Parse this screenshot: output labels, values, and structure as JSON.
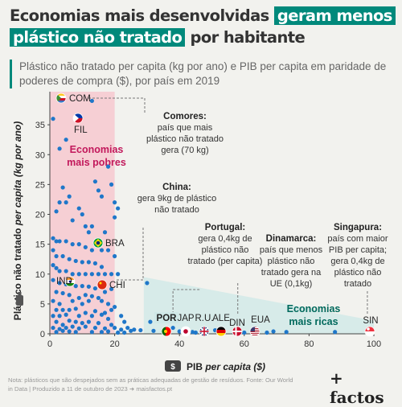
{
  "title": {
    "part1": "Economias mais desenvolvidas",
    "highlight1": "geram menos",
    "highlight2": "plástico não tratado",
    "part2": "por habitante"
  },
  "subtitle": "Plástico não tratado per capita (kg por ano) e PIB per capita em paridade de poderes de compra ($), por país em 2019",
  "footer": "Nota: plásticos que são despejados sem as práticas adequadas de gestão de resíduos. Fonte: Our World in Data | Produzido a 11 de outubro de 2023 ➜ maisfactos.pt",
  "logo": "+ factos",
  "colors": {
    "accent": "#00897b",
    "dot": "#1f77c9",
    "poorZone": "#f7c9cf",
    "richZone": "#cfe8e7",
    "poorText": "#c2185b",
    "richText": "#00695c"
  },
  "chart_data": {
    "type": "scatter",
    "xlabel_prefix": "PIB",
    "xlabel_italic": "per capita ($)",
    "ylabel_prefix": "Plástico não tratado",
    "ylabel_italic": "per capita (kg por ano)",
    "xlim": [
      0,
      100
    ],
    "ylim": [
      0,
      40
    ],
    "x_ticks": [
      "0",
      "20",
      "40",
      "60",
      "80",
      "100"
    ],
    "y_ticks": [
      "0",
      "5",
      "10",
      "15",
      "20",
      "25",
      "30",
      "35"
    ],
    "zones": [
      {
        "label_line1": "Economias",
        "label_line2": "mais pobres",
        "x_range": [
          0,
          20
        ]
      },
      {
        "label_line1": "Economias",
        "label_line2": "mais ricas"
      }
    ],
    "labeled_points": [
      {
        "code": "COM",
        "x": 2,
        "y": 40,
        "icon": "comoros-flag-icon"
      },
      {
        "code": "FIL",
        "x": 4,
        "y": 35,
        "icon": "philippines-flag-icon"
      },
      {
        "code": "BRA",
        "x": 15,
        "y": 15.5,
        "icon": "brazil-flag-icon"
      },
      {
        "code": "IND",
        "x": 6,
        "y": 9,
        "icon": "india-flag-icon"
      },
      {
        "code": "CHI",
        "x": 16,
        "y": 8.8,
        "icon": "china-flag-icon"
      },
      {
        "code": "POR",
        "x": 36.5,
        "y": 0.4,
        "icon": "portugal-flag-icon"
      },
      {
        "code": "JAP",
        "x": 42,
        "y": 0.2,
        "icon": "japan-flag-icon"
      },
      {
        "code": "R.U.",
        "x": 48,
        "y": 0.2,
        "icon": "uk-flag-icon"
      },
      {
        "code": "ALE",
        "x": 55,
        "y": 0.2,
        "icon": "germany-flag-icon"
      },
      {
        "code": "DIN",
        "x": 58,
        "y": 0.1,
        "icon": "denmark-flag-icon"
      },
      {
        "code": "EUA",
        "x": 62,
        "y": 0.2,
        "icon": "usa-flag-icon"
      },
      {
        "code": "SIN",
        "x": 98,
        "y": 0.4,
        "icon": "singapore-flag-icon"
      }
    ],
    "points": [
      [
        1,
        36
      ],
      [
        3,
        31
      ],
      [
        5,
        32.5
      ],
      [
        8,
        36
      ],
      [
        13,
        39
      ],
      [
        18,
        28
      ],
      [
        19,
        25
      ],
      [
        20,
        22
      ],
      [
        21,
        21
      ],
      [
        20,
        19.5
      ],
      [
        2,
        20.5
      ],
      [
        4,
        24.5
      ],
      [
        6,
        23
      ],
      [
        14,
        25.5
      ],
      [
        15,
        24
      ],
      [
        16,
        23
      ],
      [
        3,
        22
      ],
      [
        5,
        22
      ],
      [
        9,
        21
      ],
      [
        10,
        20
      ],
      [
        7,
        19
      ],
      [
        11,
        18
      ],
      [
        13,
        18
      ],
      [
        12,
        17
      ],
      [
        17,
        17
      ],
      [
        1,
        16
      ],
      [
        2,
        15.5
      ],
      [
        3,
        15.5
      ],
      [
        5,
        15.5
      ],
      [
        7,
        15
      ],
      [
        9,
        15
      ],
      [
        11,
        14.5
      ],
      [
        13,
        14
      ],
      [
        14,
        15
      ],
      [
        16,
        14
      ],
      [
        18,
        14
      ],
      [
        20,
        13
      ],
      [
        1,
        14
      ],
      [
        2,
        13
      ],
      [
        4,
        13
      ],
      [
        6,
        12.5
      ],
      [
        8,
        12.2
      ],
      [
        10,
        12
      ],
      [
        12,
        12
      ],
      [
        14,
        11.8
      ],
      [
        16,
        11.2
      ],
      [
        1,
        11.5
      ],
      [
        2,
        11
      ],
      [
        3,
        10.5
      ],
      [
        5,
        10.5
      ],
      [
        7,
        10
      ],
      [
        9,
        10
      ],
      [
        11,
        10
      ],
      [
        13,
        10
      ],
      [
        15,
        10
      ],
      [
        17,
        10
      ],
      [
        19,
        10
      ],
      [
        21,
        10
      ],
      [
        1,
        9
      ],
      [
        3,
        8.5
      ],
      [
        5,
        8.3
      ],
      [
        8,
        8
      ],
      [
        10,
        8
      ],
      [
        12,
        7.9
      ],
      [
        14,
        7.6
      ],
      [
        17,
        7
      ],
      [
        19,
        7.5
      ],
      [
        2,
        7
      ],
      [
        4,
        6.8
      ],
      [
        6,
        6.5
      ],
      [
        9,
        6
      ],
      [
        11,
        6.5
      ],
      [
        13,
        6.3
      ],
      [
        15,
        6
      ],
      [
        1,
        5.5
      ],
      [
        3,
        5
      ],
      [
        7,
        5.5
      ],
      [
        10,
        5
      ],
      [
        12,
        5.5
      ],
      [
        16,
        5.5
      ],
      [
        18,
        5
      ],
      [
        20,
        4.5
      ],
      [
        2,
        4
      ],
      [
        4,
        4
      ],
      [
        6,
        4
      ],
      [
        8,
        4.2
      ],
      [
        11,
        3.5
      ],
      [
        14,
        3.8
      ],
      [
        17,
        3.5
      ],
      [
        19,
        4
      ],
      [
        1,
        3
      ],
      [
        3,
        3
      ],
      [
        5,
        3.2
      ],
      [
        9,
        3
      ],
      [
        13,
        3
      ],
      [
        16,
        3.2
      ],
      [
        18,
        2.5
      ],
      [
        22,
        3
      ],
      [
        2,
        2
      ],
      [
        4,
        1.5
      ],
      [
        6,
        2.2
      ],
      [
        8,
        2
      ],
      [
        10,
        1.8
      ],
      [
        12,
        2
      ],
      [
        15,
        1.8
      ],
      [
        19,
        1.5
      ],
      [
        23,
        2
      ],
      [
        1,
        1
      ],
      [
        3,
        0.8
      ],
      [
        5,
        1
      ],
      [
        7,
        1.2
      ],
      [
        9,
        0.9
      ],
      [
        11,
        1.2
      ],
      [
        14,
        1
      ],
      [
        17,
        0.9
      ],
      [
        20,
        1
      ],
      [
        22,
        0.7
      ],
      [
        24,
        1
      ],
      [
        2,
        0.3
      ],
      [
        4,
        0.5
      ],
      [
        6,
        0.4
      ],
      [
        8,
        0.3
      ],
      [
        13,
        0.3
      ],
      [
        16,
        0.3
      ],
      [
        18,
        0.4
      ],
      [
        21,
        0.2
      ],
      [
        23,
        0.2
      ],
      [
        25,
        0.5
      ],
      [
        26,
        0.7
      ],
      [
        28,
        0.6
      ],
      [
        30,
        8.5
      ],
      [
        31,
        2
      ],
      [
        32,
        0.5
      ],
      [
        35,
        0.4
      ],
      [
        38,
        1
      ],
      [
        40,
        0.4
      ],
      [
        44,
        0.3
      ],
      [
        45,
        0.2
      ],
      [
        47,
        0.4
      ],
      [
        51,
        0.6
      ],
      [
        52,
        0.2
      ],
      [
        53,
        0.4
      ],
      [
        57,
        0.3
      ],
      [
        60,
        0.2
      ],
      [
        64,
        0.3
      ],
      [
        67,
        0.2
      ],
      [
        69,
        0.4
      ],
      [
        73,
        0.3
      ],
      [
        88,
        0.3
      ]
    ]
  },
  "annotations": {
    "comores": {
      "bold": "Comores:",
      "text": [
        "país que mais",
        "plástico não tratado",
        "gera (70 kg)"
      ]
    },
    "china": {
      "bold": "China:",
      "text": [
        "gera 9kg de plástico",
        "não tratado"
      ]
    },
    "portugal": {
      "bold": "Portugal:",
      "text": [
        "gera 0,4kg de",
        "plástico não",
        "tratado (per capita)"
      ]
    },
    "dinamarca": {
      "bold": "Dinamarca:",
      "text": [
        "país que menos",
        "plástico não",
        "tratado gera na",
        "UE (0,1kg)"
      ]
    },
    "singapura": {
      "bold": "Singapura:",
      "text": [
        "país com maior",
        "PIB per capita;",
        "gera 0,4kg de",
        "plástico não",
        "tratado"
      ]
    }
  }
}
